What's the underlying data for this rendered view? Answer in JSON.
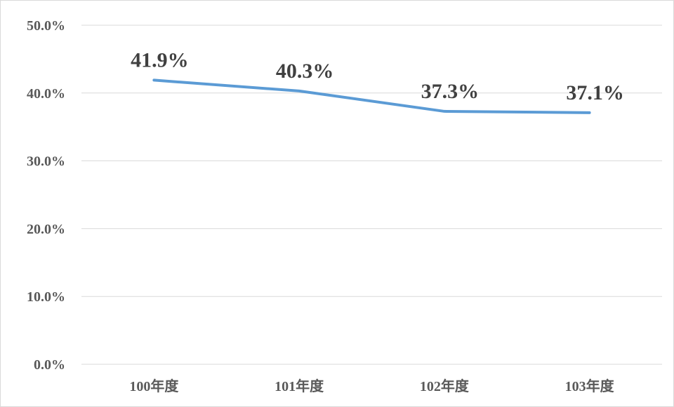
{
  "chart_data": {
    "type": "line",
    "title": "",
    "xlabel": "",
    "ylabel": "",
    "categories": [
      "100年度",
      "101年度",
      "102年度",
      "103年度"
    ],
    "series": [
      {
        "values": [
          41.9,
          40.3,
          37.3,
          37.1
        ],
        "data_labels": [
          "41.9%",
          "40.3%",
          "37.3%",
          "37.1%"
        ],
        "color": "#5b9bd5"
      }
    ],
    "ylim": [
      0,
      50
    ],
    "yticks": [
      {
        "value": 0,
        "label": "0.0%"
      },
      {
        "value": 10,
        "label": "10.0%"
      },
      {
        "value": 20,
        "label": "20.0%"
      },
      {
        "value": 30,
        "label": "30.0%"
      },
      {
        "value": 40,
        "label": "40.0%"
      },
      {
        "value": 50,
        "label": "50.0%"
      }
    ],
    "grid": true,
    "legend": "none"
  }
}
